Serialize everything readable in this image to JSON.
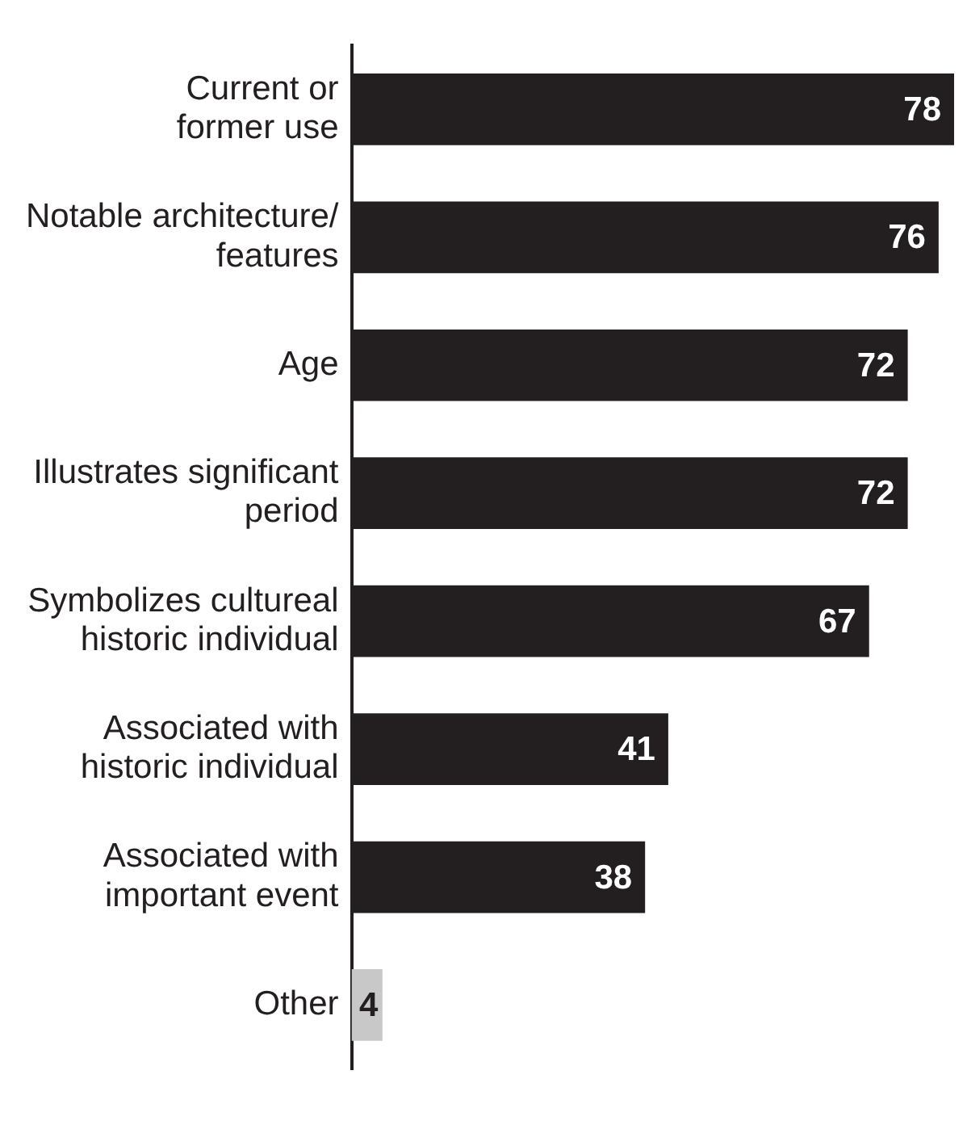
{
  "chart_data": {
    "type": "bar",
    "orientation": "horizontal",
    "categories": [
      "Current or\nformer use",
      "Notable architecture/\nfeatures",
      "Age",
      "Illustrates significant\nperiod",
      "Symbolizes cultureal\nhistoric individual",
      "Associated with\nhistoric individual",
      "Associated with\nimportant event",
      "Other"
    ],
    "values": [
      78,
      76,
      72,
      72,
      67,
      41,
      38,
      4
    ],
    "colors": [
      "#231f20",
      "#231f20",
      "#231f20",
      "#231f20",
      "#231f20",
      "#231f20",
      "#231f20",
      "#c8c8c8"
    ],
    "xlim": [
      0,
      78
    ],
    "data_labels": true
  }
}
